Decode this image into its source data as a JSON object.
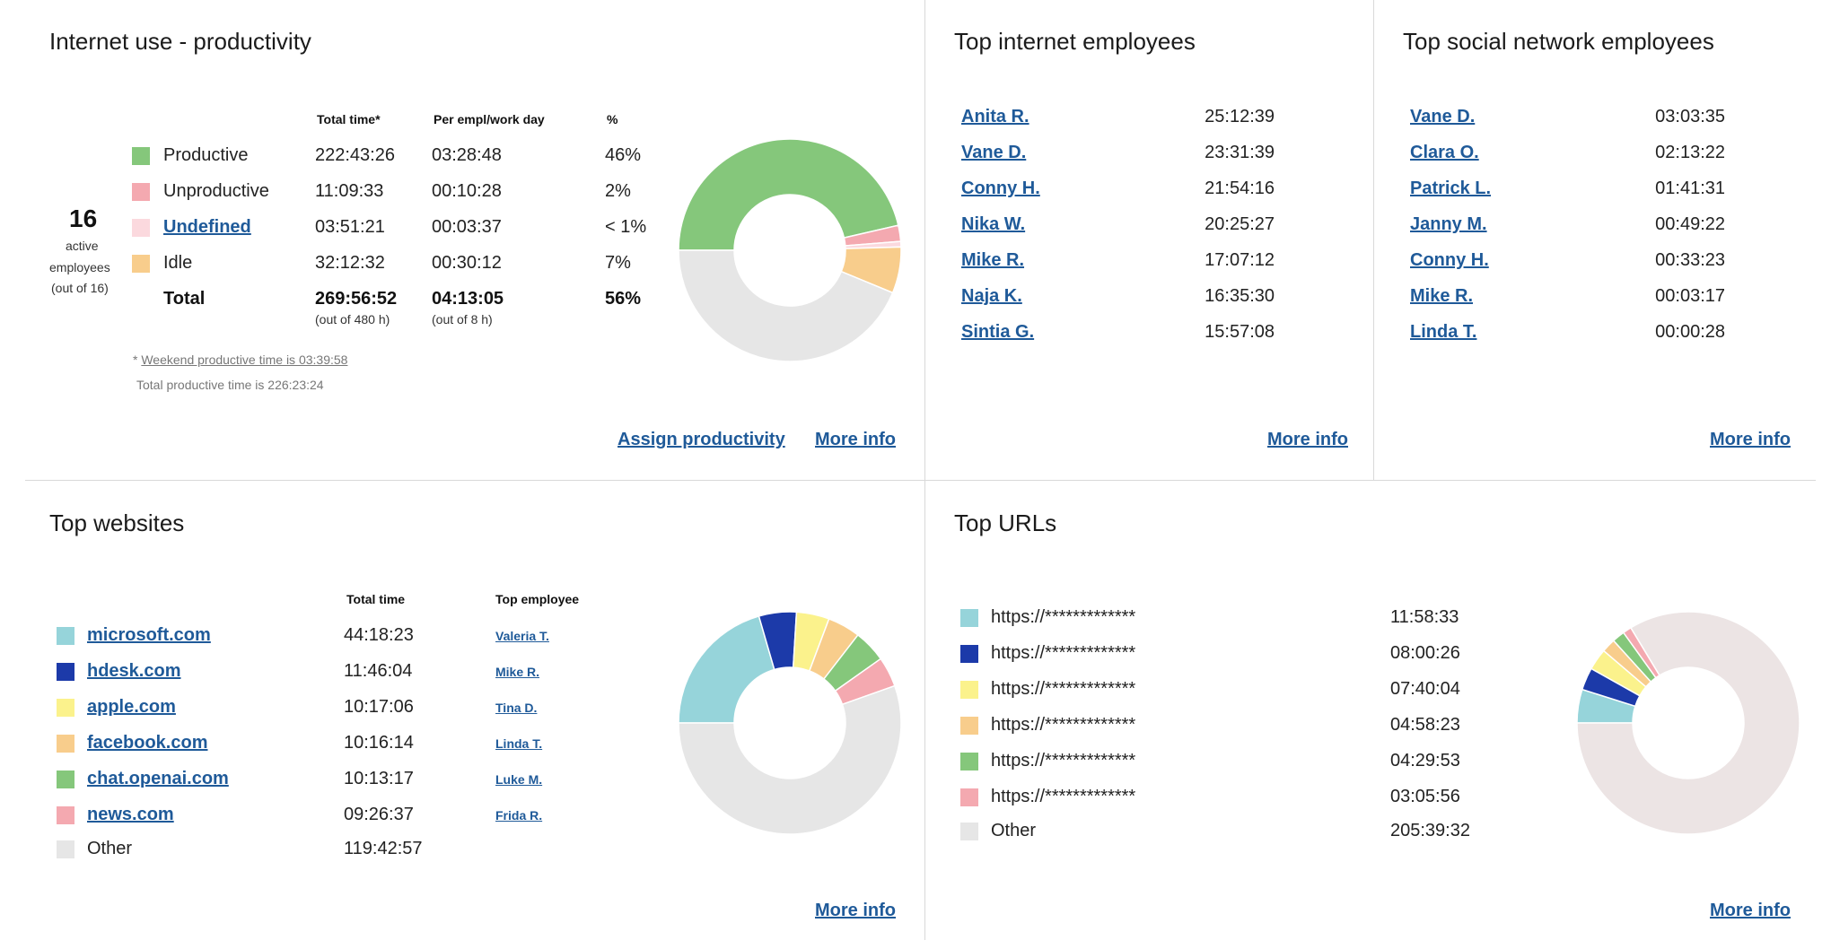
{
  "productivity": {
    "title": "Internet use - productivity",
    "active_count": "16",
    "active_label_1": "active",
    "active_label_2": "employees",
    "active_label_3": "(out of 16)",
    "headers": {
      "total": "Total time*",
      "per_day": "Per empl/work day",
      "pct": "%"
    },
    "rows": [
      {
        "label": "Productive",
        "total": "222:43:26",
        "per_day": "03:28:48",
        "pct": "46%",
        "color": "#85c77b"
      },
      {
        "label": "Unproductive",
        "total": "11:09:33",
        "per_day": "00:10:28",
        "pct": "2%",
        "color": "#f4a9b0"
      },
      {
        "label": "Undefined",
        "total": "03:51:21",
        "per_day": "00:03:37",
        "pct": "< 1%",
        "color": "#fbd9de"
      },
      {
        "label": "Idle",
        "total": "32:12:32",
        "per_day": "00:30:12",
        "pct": "7%",
        "color": "#f8cd8c"
      }
    ],
    "total": {
      "label": "Total",
      "total": "269:56:52",
      "per_day": "04:13:05",
      "pct": "56%",
      "total_sub": "(out of 480 h)",
      "per_day_sub": "(out of 8 h)"
    },
    "note_star": "*",
    "note_weekend": "Weekend productive time is 03:39:58",
    "note_total": "Total productive time is 226:23:24",
    "assign_link": "Assign productivity",
    "more_info": "More info",
    "chart_data": {
      "type": "pie",
      "categories": [
        "Productive",
        "Unproductive",
        "Undefined",
        "Idle",
        "Other"
      ],
      "values": [
        222.72,
        11.16,
        3.86,
        32.21,
        210.05
      ],
      "colors": [
        "#85c77b",
        "#f4a9b0",
        "#fbd9de",
        "#f8cd8c",
        "#e6e6e6"
      ]
    }
  },
  "top_internet": {
    "title": "Top internet employees",
    "rows": [
      {
        "name": "Anita R.",
        "time": "25:12:39"
      },
      {
        "name": "Vane D.",
        "time": "23:31:39"
      },
      {
        "name": "Conny H.",
        "time": "21:54:16"
      },
      {
        "name": "Nika W.",
        "time": "20:25:27"
      },
      {
        "name": "Mike R.",
        "time": "17:07:12"
      },
      {
        "name": "Naja K.",
        "time": "16:35:30"
      },
      {
        "name": "Sintia G.",
        "time": "15:57:08"
      }
    ],
    "more_info": "More info"
  },
  "top_social": {
    "title": "Top social network employees",
    "rows": [
      {
        "name": "Vane D.",
        "time": "03:03:35"
      },
      {
        "name": "Clara O.",
        "time": "02:13:22"
      },
      {
        "name": "Patrick L.",
        "time": "01:41:31"
      },
      {
        "name": "Janny M.",
        "time": "00:49:22"
      },
      {
        "name": "Conny H.",
        "time": "00:33:23"
      },
      {
        "name": "Mike R.",
        "time": "00:03:17"
      },
      {
        "name": "Linda T.",
        "time": "00:00:28"
      }
    ],
    "more_info": "More info"
  },
  "top_websites": {
    "title": "Top websites",
    "headers": {
      "total": "Total time",
      "employee": "Top employee"
    },
    "rows": [
      {
        "site": "microsoft.com",
        "time": "44:18:23",
        "employee": "Valeria T.",
        "color": "#96d4da"
      },
      {
        "site": "hdesk.com",
        "time": "11:46:04",
        "employee": "Mike R.",
        "color": "#1c3aa9"
      },
      {
        "site": "apple.com",
        "time": "10:17:06",
        "employee": "Tina D.",
        "color": "#fbf28c"
      },
      {
        "site": "facebook.com",
        "time": "10:16:14",
        "employee": "Linda T.",
        "color": "#f8cd8c"
      },
      {
        "site": "chat.openai.com",
        "time": "10:13:17",
        "employee": "Luke M.",
        "color": "#85c77b"
      },
      {
        "site": "news.com",
        "time": "09:26:37",
        "employee": "Frida R.",
        "color": "#f4a9b0"
      }
    ],
    "other": {
      "label": "Other",
      "time": "119:42:57",
      "color": "#e6e6e6"
    },
    "more_info": "More info",
    "chart_data": {
      "type": "pie",
      "categories": [
        "microsoft.com",
        "hdesk.com",
        "apple.com",
        "facebook.com",
        "chat.openai.com",
        "news.com",
        "Other"
      ],
      "values": [
        44.31,
        11.77,
        10.29,
        10.27,
        10.22,
        9.44,
        119.72
      ],
      "colors": [
        "#96d4da",
        "#1c3aa9",
        "#fbf28c",
        "#f8cd8c",
        "#85c77b",
        "#f4a9b0",
        "#e6e6e6"
      ]
    }
  },
  "top_urls": {
    "title": "Top URLs",
    "rows": [
      {
        "url": "https://*************",
        "time": "11:58:33",
        "color": "#96d4da"
      },
      {
        "url": "https://*************",
        "time": "08:00:26",
        "color": "#1c3aa9"
      },
      {
        "url": "https://*************",
        "time": "07:40:04",
        "color": "#fbf28c"
      },
      {
        "url": "https://*************",
        "time": "04:58:23",
        "color": "#f8cd8c"
      },
      {
        "url": "https://*************",
        "time": "04:29:53",
        "color": "#85c77b"
      },
      {
        "url": "https://*************",
        "time": "03:05:56",
        "color": "#f4a9b0"
      }
    ],
    "other": {
      "label": "Other",
      "time": "205:39:32",
      "color": "#e6e6e6"
    },
    "more_info": "More info",
    "chart_data": {
      "type": "pie",
      "categories": [
        "url1",
        "url2",
        "url3",
        "url4",
        "url5",
        "url6",
        "Other"
      ],
      "values": [
        11.98,
        8.01,
        7.67,
        4.97,
        4.5,
        3.1,
        205.66
      ],
      "colors": [
        "#96d4da",
        "#1c3aa9",
        "#fbf28c",
        "#f8cd8c",
        "#85c77b",
        "#f4a9b0",
        "#ece4e4"
      ]
    }
  }
}
